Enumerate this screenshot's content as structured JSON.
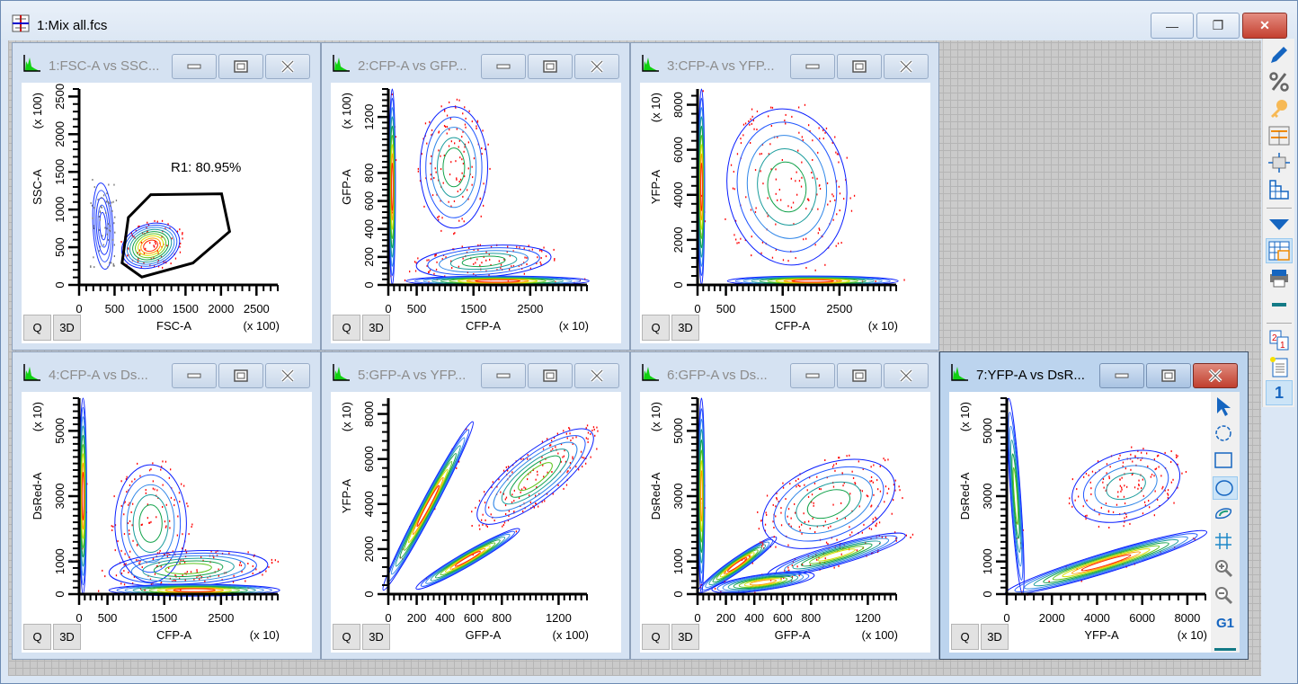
{
  "app": {
    "title": "1:Mix all.fcs",
    "minimize": "—",
    "restore": "❐",
    "close": "✕"
  },
  "colors": {
    "contour": [
      "#0a1eff",
      "#1f55ff",
      "#2f86e8",
      "#1a9c9c",
      "#11a24a",
      "#5cc41c",
      "#d8e000",
      "#ff9a00",
      "#ff2a00"
    ],
    "dots": "#ff0000",
    "gray_dots": "#777777",
    "accent": "#1565c0"
  },
  "right_toolbar": {
    "items": [
      "pencil-icon",
      "percent-icon",
      "key-icon",
      "layout-icon",
      "resize-icon",
      "staircase-icon",
      "dropdown-triangle-icon",
      "grid-layout-icon",
      "print-icon",
      "minus-icon",
      "page-order-icon",
      "new-document-icon",
      "page-number"
    ],
    "page_number": "1"
  },
  "panels": [
    {
      "title": "1:FSC-A vs SSC...",
      "xlabel": "FSC-A",
      "ylabel": "SSC-A",
      "xscale": "(x 100)",
      "yscale": "(x 100)",
      "xrange": [
        0,
        2800
      ],
      "yrange": [
        0,
        2600
      ],
      "xticks": [
        0,
        500,
        1000,
        1500,
        2000,
        2500
      ],
      "yticks": [
        0,
        500,
        1000,
        1500,
        2000,
        2500
      ],
      "xminor": 100,
      "yminor": 100,
      "gate_label": "R1: 80.95%"
    },
    {
      "title": "2:CFP-A vs GFP...",
      "xlabel": "CFP-A",
      "ylabel": "GFP-A",
      "xscale": "(x 10)",
      "yscale": "(x 100)",
      "xrange": [
        0,
        3500
      ],
      "yrange": [
        0,
        1400
      ],
      "xticks": [
        0,
        500,
        1500,
        2500
      ],
      "yticks": [
        0,
        200,
        400,
        600,
        800,
        1200
      ],
      "xminor": 100,
      "yminor": 40
    },
    {
      "title": "3:CFP-A vs YFP...",
      "xlabel": "CFP-A",
      "ylabel": "YFP-A",
      "xscale": "(x 10)",
      "yscale": "(x 10)",
      "xrange": [
        0,
        3500
      ],
      "yrange": [
        0,
        8700
      ],
      "xticks": [
        0,
        500,
        1500,
        2500
      ],
      "yticks": [
        0,
        2000,
        4000,
        6000,
        8000
      ],
      "xminor": 100,
      "yminor": 400
    },
    {
      "title": "4:CFP-A vs Ds...",
      "xlabel": "CFP-A",
      "ylabel": "DsRed-A",
      "xscale": "(x 10)",
      "yscale": "(x 10)",
      "xrange": [
        0,
        3500
      ],
      "yrange": [
        0,
        6000
      ],
      "xticks": [
        0,
        500,
        1500,
        2500
      ],
      "yticks": [
        0,
        1000,
        3000,
        5000
      ],
      "xminor": 100,
      "yminor": 200
    },
    {
      "title": "5:GFP-A vs YFP...",
      "xlabel": "GFP-A",
      "ylabel": "YFP-A",
      "xscale": "(x 100)",
      "yscale": "(x 10)",
      "xrange": [
        0,
        1400
      ],
      "yrange": [
        0,
        8700
      ],
      "xticks": [
        0,
        200,
        400,
        600,
        800,
        1200
      ],
      "yticks": [
        0,
        2000,
        4000,
        6000,
        8000
      ],
      "xminor": 40,
      "yminor": 400
    },
    {
      "title": "6:GFP-A vs Ds...",
      "xlabel": "GFP-A",
      "ylabel": "DsRed-A",
      "xscale": "(x 100)",
      "yscale": "(x 10)",
      "xrange": [
        0,
        1400
      ],
      "yrange": [
        0,
        6000
      ],
      "xticks": [
        0,
        200,
        400,
        600,
        800,
        1200
      ],
      "yticks": [
        0,
        1000,
        3000,
        5000
      ],
      "xminor": 40,
      "yminor": 200
    },
    {
      "title": "7:YFP-A vs DsR...",
      "xlabel": "YFP-A",
      "ylabel": "DsRed-A",
      "xscale": "(x 10)",
      "yscale": "(x 10)",
      "xrange": [
        0,
        8800
      ],
      "yrange": [
        0,
        6000
      ],
      "xticks": [
        0,
        2000,
        4000,
        6000,
        8000
      ],
      "yticks": [
        0,
        1000,
        3000,
        5000
      ],
      "xminor": 400,
      "yminor": 200
    }
  ],
  "panel_buttons": {
    "q": "Q",
    "three_d": "3D"
  },
  "plot_tools": {
    "items": [
      "pointer-arrow-icon",
      "circle-gate-icon",
      "rectangle-gate-icon",
      "ellipse-gate-icon",
      "polygon-gate-icon",
      "quadrant-grid-icon",
      "zoom-in-icon",
      "zoom-out-icon",
      "gate-label",
      "line-icon"
    ],
    "gate_label": "G1"
  }
}
